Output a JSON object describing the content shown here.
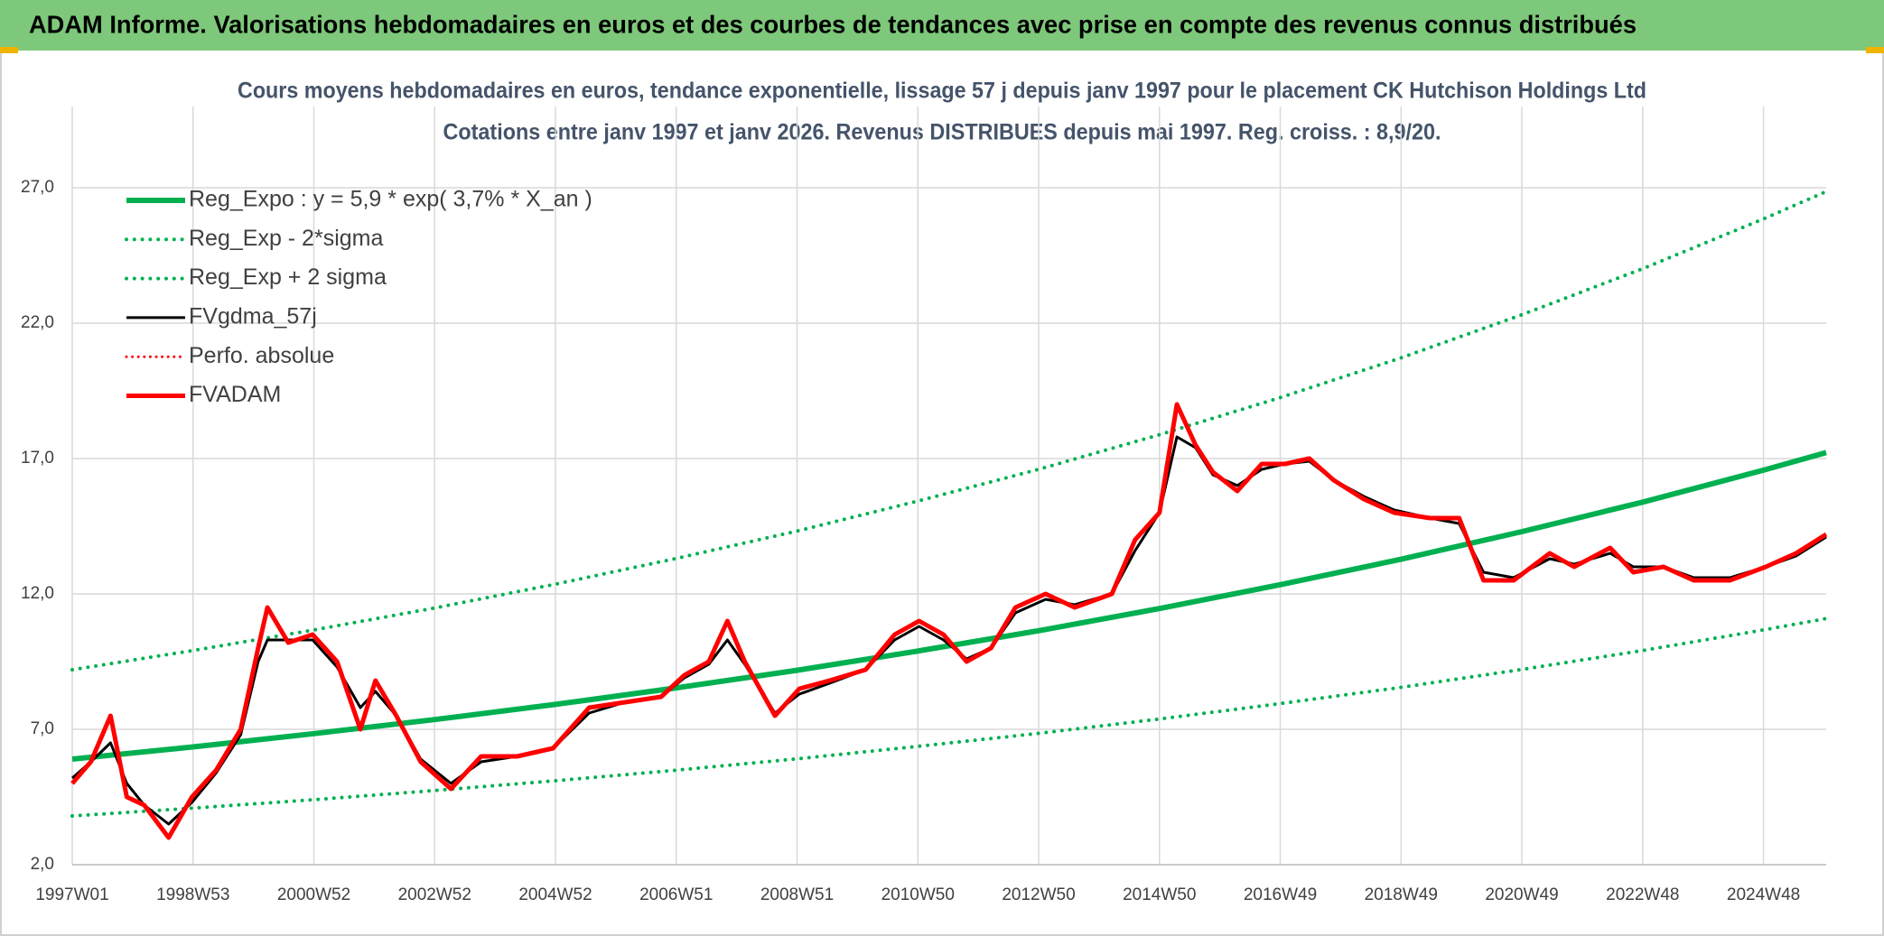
{
  "header": {
    "title": "ADAM Informe. Valorisations hebdomadaires en euros et des courbes de tendances avec prise en compte des revenus connus distribués"
  },
  "chart_data": {
    "type": "line",
    "title": "Cours moyens hebdomadaires en euros, tendance exponentielle, lissage 57 j depuis janv 1997 pour le placement CK Hutchison Holdings Ltd",
    "subtitle": "Cotations entre janv 1997 et janv 2026. Revenus DISTRIBUES depuis mai 1997. Reg. croiss. : 8,9/20.",
    "xlim": [
      0,
      1510
    ],
    "xticks": [
      {
        "value": 0,
        "label": "1997W01"
      },
      {
        "value": 104,
        "label": "1998W53"
      },
      {
        "value": 208,
        "label": "2000W52"
      },
      {
        "value": 312,
        "label": "2002W52"
      },
      {
        "value": 416,
        "label": "2004W52"
      },
      {
        "value": 520,
        "label": "2006W51"
      },
      {
        "value": 624,
        "label": "2008W51"
      },
      {
        "value": 728,
        "label": "2010W50"
      },
      {
        "value": 832,
        "label": "2012W50"
      },
      {
        "value": 936,
        "label": "2014W50"
      },
      {
        "value": 1040,
        "label": "2016W49"
      },
      {
        "value": 1144,
        "label": "2018W49"
      },
      {
        "value": 1248,
        "label": "2020W49"
      },
      {
        "value": 1352,
        "label": "2022W48"
      },
      {
        "value": 1456,
        "label": "2024W48"
      }
    ],
    "ylim": [
      2,
      30
    ],
    "yticks": [
      {
        "value": 2,
        "label": "2,0"
      },
      {
        "value": 7,
        "label": "7,0"
      },
      {
        "value": 12,
        "label": "12,0"
      },
      {
        "value": 17,
        "label": "17,0"
      },
      {
        "value": 22,
        "label": "22,0"
      },
      {
        "value": 27,
        "label": "27,0"
      }
    ],
    "grid": true,
    "legend": "top-left",
    "series": [
      {
        "name": "Reg_Expo : y = 5,9 * exp( 3,7% *  X_an )",
        "color": "#00b050",
        "style": "solid",
        "width": 6,
        "x": [
          0,
          104,
          208,
          312,
          416,
          520,
          624,
          728,
          832,
          936,
          1040,
          1144,
          1248,
          1352,
          1456,
          1510
        ],
        "values": [
          5.9,
          6.35,
          6.84,
          7.36,
          7.92,
          8.53,
          9.18,
          9.89,
          10.64,
          11.46,
          12.34,
          13.28,
          14.3,
          15.39,
          16.57,
          17.22
        ]
      },
      {
        "name": "Reg_Exp - 2*sigma",
        "color": "#00b050",
        "style": "dotted",
        "width": 4,
        "x": [
          0,
          104,
          208,
          312,
          416,
          520,
          624,
          728,
          832,
          936,
          1040,
          1144,
          1248,
          1352,
          1456,
          1510
        ],
        "values": [
          3.8,
          4.09,
          4.4,
          4.74,
          5.1,
          5.49,
          5.91,
          6.37,
          6.85,
          7.38,
          7.95,
          8.55,
          9.21,
          9.91,
          10.67,
          11.09
        ]
      },
      {
        "name": "Reg_Exp + 2 sigma",
        "color": "#00b050",
        "style": "dotted",
        "width": 4,
        "x": [
          0,
          104,
          208,
          312,
          416,
          520,
          624,
          728,
          832,
          936,
          1040,
          1144,
          1248,
          1352,
          1456,
          1510
        ],
        "values": [
          9.2,
          9.91,
          10.67,
          11.48,
          12.36,
          13.31,
          14.32,
          15.43,
          16.6,
          17.88,
          19.25,
          20.72,
          22.31,
          24.01,
          25.85,
          26.86
        ]
      },
      {
        "name": "FVgdma_57j",
        "color": "#000000",
        "style": "solid",
        "width": 3,
        "x": [
          0,
          16,
          33,
          47,
          62,
          83,
          103,
          124,
          145,
          160,
          168,
          186,
          207,
          228,
          248,
          261,
          279,
          300,
          326,
          352,
          383,
          414,
          445,
          476,
          507,
          527,
          548,
          564,
          579,
          605,
          626,
          652,
          683,
          708,
          729,
          750,
          770,
          791,
          812,
          838,
          863,
          895,
          915,
          936,
          951,
          967,
          982,
          1003,
          1024,
          1044,
          1065,
          1086,
          1112,
          1138,
          1169,
          1194,
          1215,
          1241,
          1272,
          1293,
          1324,
          1344,
          1370,
          1396,
          1427,
          1458,
          1484,
          1510
        ],
        "values": [
          5.2,
          5.8,
          6.5,
          5.0,
          4.2,
          3.5,
          4.3,
          5.4,
          6.8,
          9.5,
          10.3,
          10.3,
          10.3,
          9.3,
          7.8,
          8.4,
          7.5,
          5.9,
          5.0,
          5.8,
          6.0,
          6.3,
          7.6,
          8.0,
          8.2,
          8.9,
          9.4,
          10.3,
          9.4,
          7.6,
          8.3,
          8.7,
          9.2,
          10.3,
          10.8,
          10.3,
          9.6,
          10.0,
          11.3,
          11.8,
          11.6,
          12.0,
          13.6,
          15.0,
          17.8,
          17.4,
          16.4,
          16.0,
          16.6,
          16.8,
          16.9,
          16.2,
          15.6,
          15.1,
          14.8,
          14.6,
          12.8,
          12.6,
          13.3,
          13.1,
          13.5,
          13.0,
          13.0,
          12.6,
          12.6,
          13.0,
          13.4,
          14.1
        ]
      },
      {
        "name": "Perfo. absolue",
        "color": "#ff0000",
        "style": "dotted",
        "width": 3,
        "x": [],
        "values": []
      },
      {
        "name": "FVADAM",
        "color": "#ff0000",
        "style": "solid",
        "width": 5,
        "x": [
          0,
          16,
          33,
          47,
          62,
          83,
          103,
          124,
          145,
          160,
          168,
          186,
          207,
          228,
          248,
          261,
          279,
          300,
          326,
          352,
          383,
          414,
          445,
          476,
          507,
          527,
          548,
          564,
          579,
          605,
          626,
          652,
          683,
          708,
          729,
          750,
          770,
          791,
          812,
          838,
          863,
          895,
          915,
          936,
          951,
          967,
          982,
          1003,
          1024,
          1044,
          1065,
          1086,
          1112,
          1138,
          1169,
          1194,
          1215,
          1241,
          1272,
          1293,
          1324,
          1344,
          1370,
          1396,
          1427,
          1458,
          1484,
          1510
        ],
        "values": [
          5.0,
          5.8,
          7.5,
          4.5,
          4.2,
          3.0,
          4.5,
          5.5,
          7.0,
          10.0,
          11.5,
          10.2,
          10.5,
          9.5,
          7.0,
          8.8,
          7.5,
          5.8,
          4.8,
          6.0,
          6.0,
          6.3,
          7.8,
          8.0,
          8.2,
          9.0,
          9.5,
          11.0,
          9.5,
          7.5,
          8.5,
          8.8,
          9.2,
          10.5,
          11.0,
          10.5,
          9.5,
          10.0,
          11.5,
          12.0,
          11.5,
          12.0,
          14.0,
          15.0,
          19.0,
          17.5,
          16.5,
          15.8,
          16.8,
          16.8,
          17.0,
          16.2,
          15.5,
          15.0,
          14.8,
          14.8,
          12.5,
          12.5,
          13.5,
          13.0,
          13.7,
          12.8,
          13.0,
          12.5,
          12.5,
          13.0,
          13.5,
          14.2
        ]
      }
    ]
  }
}
